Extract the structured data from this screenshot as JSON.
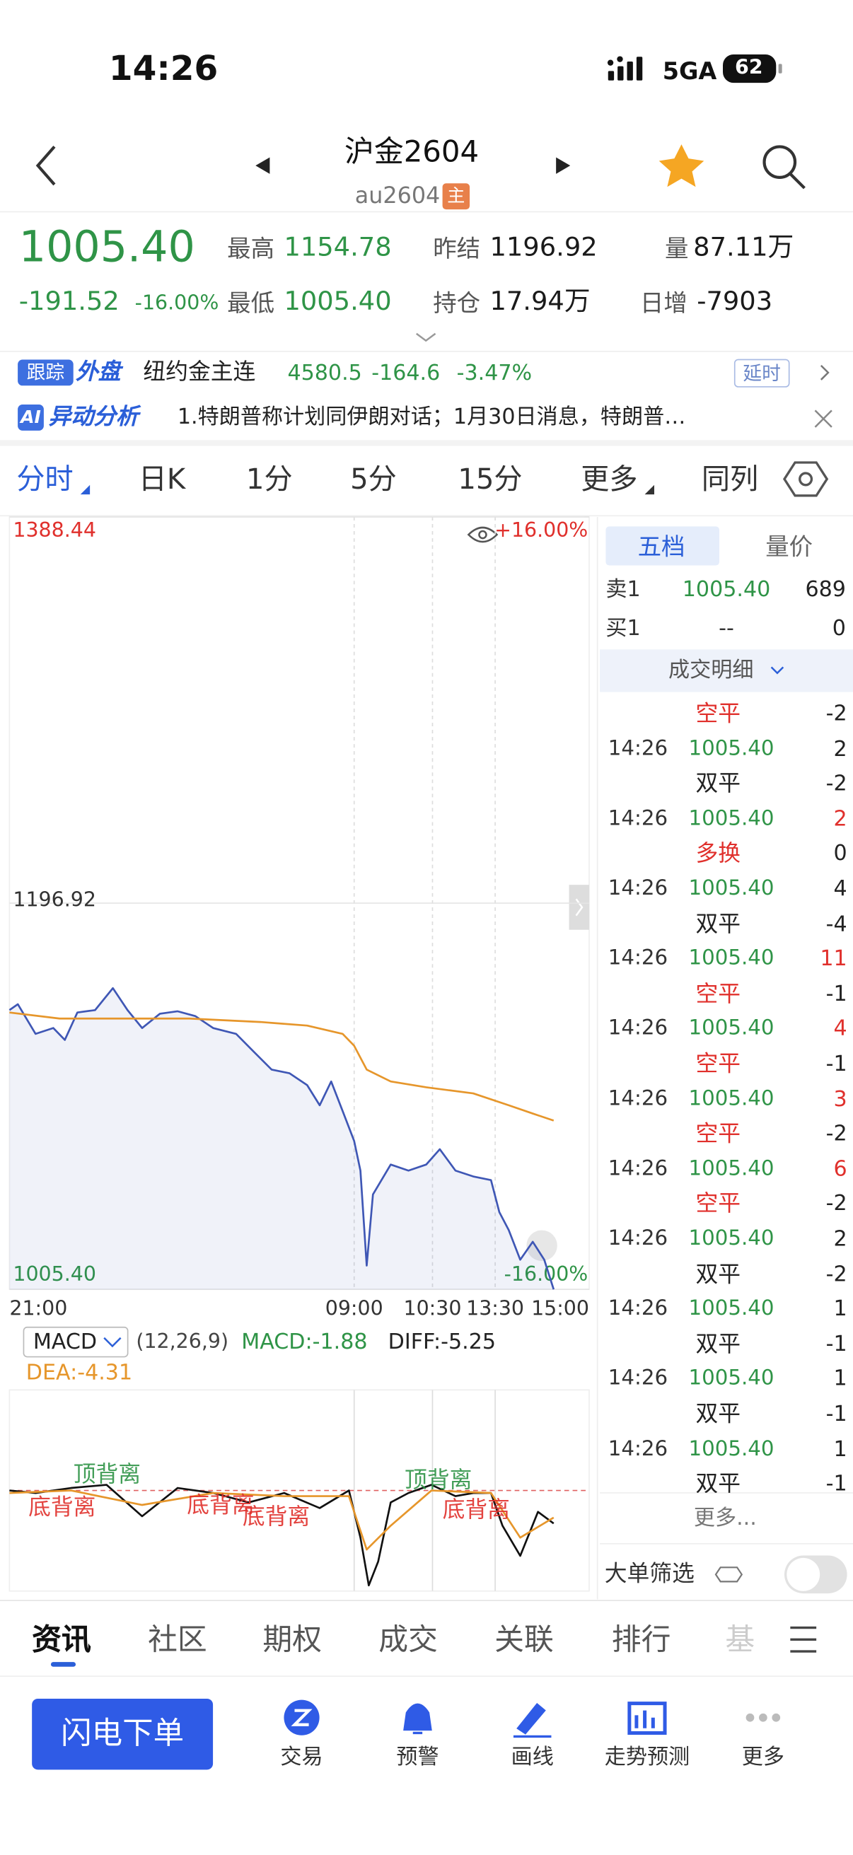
{
  "status_bar": {
    "time": "14:26",
    "network": "5GA",
    "battery": "62"
  },
  "header": {
    "title": "沪金2604",
    "code": "au2604",
    "badge": "主"
  },
  "quote": {
    "price": "1005.40",
    "change": "-191.52",
    "change_pct": "-16.00%",
    "stats": [
      {
        "label": "最高",
        "value": "1154.78",
        "color": "#2f9447"
      },
      {
        "label": "昨结",
        "value": "1196.92",
        "color": "#1a1a1a"
      },
      {
        "label": "量",
        "value": "87.11万",
        "color": "#1a1a1a"
      },
      {
        "label": "最低",
        "value": "1005.40",
        "color": "#2f9447"
      },
      {
        "label": "持仓",
        "value": "17.94万",
        "color": "#1a1a1a"
      },
      {
        "label": "日增",
        "value": "-7903",
        "color": "#1a1a1a"
      }
    ]
  },
  "foreign": {
    "tag1": "跟踪",
    "tag2": "外盘",
    "name": "纽约金主连",
    "price": "4580.5",
    "change": "-164.6",
    "change_pct": "-3.47%",
    "delay": "延时"
  },
  "ai": {
    "tag": "AI",
    "title": "异动分析",
    "text": "1.特朗普称计划同伊朗对话；1月30日消息，特朗普…"
  },
  "tabs": [
    "分时",
    "日K",
    "1分",
    "5分",
    "15分",
    "更多",
    "同列"
  ],
  "chart_data": [
    {
      "type": "line",
      "xlim": [
        0,
        555
      ],
      "xticks": [
        {
          "value": 0,
          "label": "21:00"
        },
        {
          "value": 330,
          "label": "09:00"
        },
        {
          "value": 405,
          "label": "10:30"
        },
        {
          "value": 465,
          "label": "13:30"
        },
        {
          "value": 555,
          "label": "15:00"
        }
      ],
      "ylim": [
        1005.4,
        1388.44
      ],
      "yticks": [
        1388.44,
        1196.92,
        {
          "value": 1005.4,
          "label": "1005.40"
        }
      ],
      "y2lim": [
        -16,
        16
      ],
      "y2ticks": [
        {
          "value": 16,
          "label": "+16.00%"
        },
        {
          "value": -16,
          "label": "-16.00%"
        }
      ],
      "series": [
        {
          "color": "#3f57b5",
          "area": true,
          "x": [
            0,
            8,
            25,
            42,
            53,
            65,
            82,
            99,
            113,
            127,
            144,
            161,
            178,
            195,
            217,
            234,
            251,
            268,
            285,
            297,
            308,
            319,
            330,
            336,
            342,
            348,
            365,
            382,
            399,
            412,
            427,
            444,
            461,
            469,
            478,
            489,
            501,
            512,
            521
          ],
          "values": [
            1143.9,
            1146.8,
            1132.1,
            1135.0,
            1129.1,
            1142.7,
            1143.9,
            1154.78,
            1143.9,
            1135.0,
            1142.1,
            1143.3,
            1140.9,
            1135.0,
            1132.1,
            1123.2,
            1114.4,
            1112.6,
            1106.7,
            1096.7,
            1108.5,
            1093.8,
            1079.0,
            1064.3,
            1017.2,
            1052.5,
            1067.3,
            1064.3,
            1067.3,
            1074.9,
            1064.3,
            1061.4,
            1059.6,
            1043.7,
            1034.8,
            1020.1,
            1029.0,
            1020.1,
            1005.4
          ]
        },
        {
          "color": "#e6962b",
          "x": [
            0,
            48,
            104,
            172,
            240,
            285,
            319,
            330,
            342,
            365,
            399,
            444,
            478,
            501,
            521
          ],
          "values": [
            1142.7,
            1139.7,
            1139.7,
            1139.7,
            1138.0,
            1136.2,
            1132.1,
            1126.2,
            1114.4,
            1108.5,
            1105.6,
            1102.6,
            1096.7,
            1092.6,
            1089.1
          ]
        }
      ]
    },
    {
      "type": "line",
      "indicator": "MACD",
      "params": "(12,26,9)",
      "readouts": [
        "MACD:-1.88",
        "DIFF:-5.25",
        "DEA:-4.31"
      ],
      "annotations": [
        "顶背离",
        "顶背离",
        "底背离",
        "底背离",
        "底背离",
        "底背离"
      ],
      "xlim": [
        0,
        555
      ],
      "ylim": [
        -16,
        16
      ],
      "series": [
        {
          "color": "#111111",
          "x": [
            0,
            25,
            59,
            93,
            127,
            161,
            195,
            229,
            263,
            297,
            325,
            336,
            344,
            353,
            365,
            382,
            404,
            427,
            444,
            461,
            472,
            489,
            506,
            521
          ],
          "values": [
            0,
            -0.4,
            0.4,
            0.9,
            -4.1,
            0.4,
            -0.4,
            -1.9,
            -0.4,
            -2.8,
            0,
            -7.5,
            -15.1,
            -11.3,
            -1.9,
            -0.4,
            0.9,
            -0.9,
            -0.4,
            -0.4,
            -5.6,
            -10.4,
            -3.4,
            -5.25
          ]
        },
        {
          "color": "#e6962b",
          "x": [
            0,
            59,
            127,
            195,
            263,
            325,
            342,
            365,
            404,
            461,
            489,
            521
          ],
          "values": [
            -0.4,
            0,
            -2.3,
            -0.4,
            -0.9,
            -0.9,
            -9.4,
            -5.6,
            0,
            -0.4,
            -7.5,
            -4.31
          ]
        }
      ]
    }
  ],
  "order_book": {
    "tabs": [
      "五档",
      "量价"
    ],
    "rows": [
      {
        "label": "卖1",
        "price": "1005.40",
        "vol": "689"
      },
      {
        "label": "买1",
        "price": "--",
        "vol": "0"
      }
    ],
    "detail_title": "成交明细",
    "lines": [
      {
        "type": "空平",
        "chg": "-2",
        "color": "#e0302c"
      },
      {
        "time": "14:26",
        "price": "1005.40",
        "vol": "2",
        "color": "#222222"
      },
      {
        "type": "双平",
        "chg": "-2",
        "color": "#222222"
      },
      {
        "time": "14:26",
        "price": "1005.40",
        "vol": "2",
        "color": "#e0302c"
      },
      {
        "type": "多换",
        "chg": "0",
        "color": "#e0302c"
      },
      {
        "time": "14:26",
        "price": "1005.40",
        "vol": "4",
        "color": "#222222"
      },
      {
        "type": "双平",
        "chg": "-4",
        "color": "#222222"
      },
      {
        "time": "14:26",
        "price": "1005.40",
        "vol": "11",
        "color": "#e0302c"
      },
      {
        "type": "空平",
        "chg": "-1",
        "color": "#e0302c"
      },
      {
        "time": "14:26",
        "price": "1005.40",
        "vol": "4",
        "color": "#e0302c"
      },
      {
        "type": "空平",
        "chg": "-1",
        "color": "#e0302c"
      },
      {
        "time": "14:26",
        "price": "1005.40",
        "vol": "3",
        "color": "#e0302c"
      },
      {
        "type": "空平",
        "chg": "-2",
        "color": "#e0302c"
      },
      {
        "time": "14:26",
        "price": "1005.40",
        "vol": "6",
        "color": "#e0302c"
      },
      {
        "type": "空平",
        "chg": "-2",
        "color": "#e0302c"
      },
      {
        "time": "14:26",
        "price": "1005.40",
        "vol": "2",
        "color": "#222222"
      },
      {
        "type": "双平",
        "chg": "-2",
        "color": "#222222"
      },
      {
        "time": "14:26",
        "price": "1005.40",
        "vol": "1",
        "color": "#222222"
      },
      {
        "type": "双平",
        "chg": "-1",
        "color": "#222222"
      },
      {
        "time": "14:26",
        "price": "1005.40",
        "vol": "1",
        "color": "#222222"
      },
      {
        "type": "双平",
        "chg": "-1",
        "color": "#222222"
      },
      {
        "time": "14:26",
        "price": "1005.40",
        "vol": "1",
        "color": "#222222"
      },
      {
        "type": "双平",
        "chg": "-1",
        "color": "#222222"
      }
    ],
    "more": "更多...",
    "filter": "大单筛选"
  },
  "bottom_tabs": [
    "资讯",
    "社区",
    "期权",
    "成交",
    "关联",
    "排行",
    "基"
  ],
  "toolbar": {
    "primary": "闪电下单",
    "items": [
      "交易",
      "预警",
      "画线",
      "走势预测",
      "更多"
    ]
  }
}
